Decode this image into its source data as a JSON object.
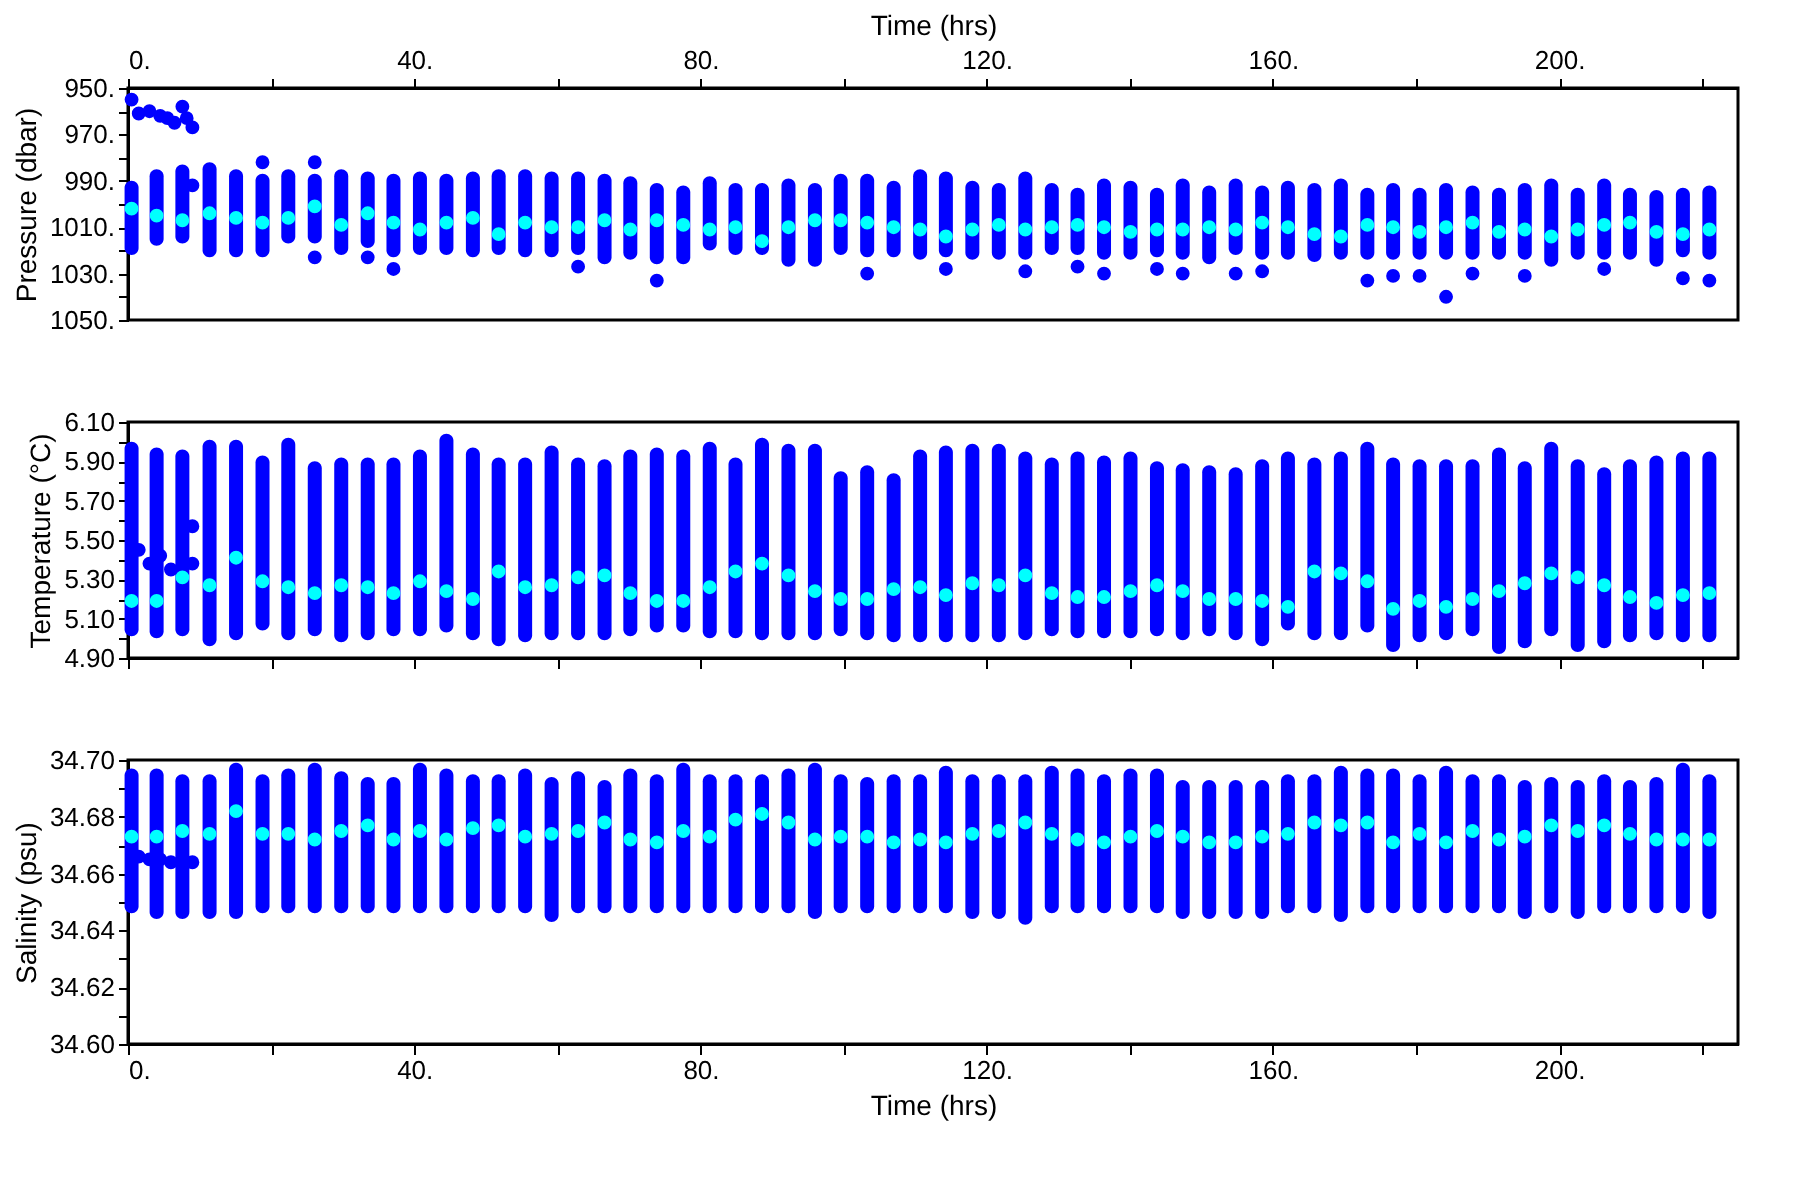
{
  "chart_data": [
    {
      "type": "scatter",
      "xlabel": "Time (hrs)",
      "ylabel": "Pressure (dbar)",
      "xlim": [
        0,
        225
      ],
      "xticks": [
        {
          "value": 0,
          "label": "0."
        },
        {
          "value": 20,
          "label": null
        },
        {
          "value": 40,
          "label": "40."
        },
        {
          "value": 60,
          "label": null
        },
        {
          "value": 80,
          "label": "80."
        },
        {
          "value": 100,
          "label": null
        },
        {
          "value": 120,
          "label": "120."
        },
        {
          "value": 140,
          "label": null
        },
        {
          "value": 160,
          "label": "160."
        },
        {
          "value": 180,
          "label": null
        },
        {
          "value": 200,
          "label": "200."
        },
        {
          "value": 220,
          "label": null
        }
      ],
      "ylim": [
        1050,
        950
      ],
      "yticks": [
        {
          "value": 950,
          "label": "950."
        },
        {
          "value": 960,
          "label": null
        },
        {
          "value": 970,
          "label": "970."
        },
        {
          "value": 980,
          "label": null
        },
        {
          "value": 990,
          "label": "990."
        },
        {
          "value": 1000,
          "label": null
        },
        {
          "value": 1010,
          "label": "1010."
        },
        {
          "value": 1020,
          "label": null
        },
        {
          "value": 1030,
          "label": "1030."
        },
        {
          "value": 1040,
          "label": null
        },
        {
          "value": 1050,
          "label": "1050."
        }
      ],
      "x": [
        0.5,
        4.0,
        7.6,
        11.4,
        15.1,
        18.8,
        22.4,
        26.1,
        29.8,
        33.5,
        37.1,
        40.8,
        44.5,
        48.2,
        51.8,
        55.5,
        59.2,
        62.9,
        66.6,
        70.2,
        73.9,
        77.6,
        81.3,
        84.9,
        88.6,
        92.3,
        96.0,
        99.6,
        103.3,
        107.0,
        110.7,
        114.3,
        118.0,
        121.7,
        125.4,
        129.1,
        132.7,
        136.4,
        140.1,
        143.8,
        147.4,
        151.1,
        154.8,
        158.5,
        162.1,
        165.8,
        169.5,
        173.2,
        176.8,
        180.5,
        184.2,
        187.9,
        191.6,
        195.2,
        198.9,
        202.6,
        206.3,
        209.9,
        213.6,
        217.3,
        221.0
      ],
      "series": [
        {
          "type": "bar",
          "color": "#0000ff",
          "base": [
            990,
            985,
            983,
            982,
            985,
            987,
            985,
            987,
            985,
            986,
            987,
            986,
            987,
            986,
            985,
            985,
            986,
            986,
            987,
            988,
            991,
            992,
            988,
            991,
            991,
            989,
            991,
            987,
            987,
            990,
            985,
            986,
            990,
            991,
            986,
            991,
            993,
            989,
            990,
            993,
            989,
            992,
            989,
            992,
            990,
            991,
            989,
            993,
            991,
            993,
            991,
            992,
            993,
            991,
            989,
            993,
            989,
            993,
            994,
            993,
            992
          ],
          "values": [
            32,
            33,
            34,
            41,
            38,
            36,
            32,
            30,
            37,
            33,
            36,
            36,
            35,
            37,
            37,
            38,
            37,
            36,
            39,
            36,
            35,
            34,
            32,
            31,
            31,
            38,
            36,
            35,
            36,
            33,
            39,
            37,
            34,
            33,
            38,
            31,
            29,
            35,
            34,
            30,
            35,
            34,
            33,
            32,
            34,
            34,
            35,
            31,
            33,
            31,
            33,
            32,
            31,
            33,
            38,
            31,
            35,
            31,
            33,
            30,
            32
          ]
        },
        {
          "color": "#0000ff",
          "x": [
            0.5,
            1.5,
            3.0,
            4.5,
            5.5,
            6.5,
            7.6,
            8.2,
            9.0,
            9.0,
            18.8,
            26.1,
            26.1,
            33.5,
            37.1,
            62.9,
            73.9,
            103.3,
            114.3,
            125.4,
            132.7,
            136.4,
            143.8,
            147.4,
            154.8,
            158.5,
            173.2,
            176.8,
            180.5,
            184.2,
            187.9,
            195.2,
            206.3,
            217.3,
            221.0
          ],
          "values": [
            955,
            961,
            960,
            962,
            963,
            965,
            958,
            963,
            967,
            992,
            982,
            982,
            1023,
            1023,
            1028,
            1027,
            1033,
            1030,
            1028,
            1029,
            1027,
            1030,
            1028,
            1030,
            1030,
            1029,
            1033,
            1031,
            1031,
            1040,
            1030,
            1031,
            1028,
            1032,
            1033
          ]
        },
        {
          "color": "#00ffff",
          "values": [
            1002,
            1005,
            1007,
            1004,
            1006,
            1008,
            1006,
            1001,
            1009,
            1004,
            1008,
            1011,
            1008,
            1006,
            1013,
            1008,
            1010,
            1010,
            1007,
            1011,
            1007,
            1009,
            1011,
            1010,
            1016,
            1010,
            1007,
            1007,
            1008,
            1010,
            1011,
            1014,
            1011,
            1009,
            1011,
            1010,
            1009,
            1010,
            1012,
            1011,
            1011,
            1010,
            1011,
            1008,
            1010,
            1013,
            1014,
            1009,
            1010,
            1012,
            1010,
            1008,
            1012,
            1011,
            1014,
            1011,
            1009,
            1008,
            1012,
            1013,
            1011
          ]
        }
      ]
    },
    {
      "type": "scatter",
      "ylabel": "Temperature (°C)",
      "tick_labels": "y",
      "xlim": [
        0,
        225
      ],
      "xticks": [
        0,
        20,
        40,
        60,
        80,
        100,
        120,
        140,
        160,
        180,
        200,
        220
      ],
      "ylim": [
        4.9,
        6.1
      ],
      "yticks": [
        {
          "value": 4.9,
          "label": "4.90"
        },
        {
          "value": 5.0,
          "label": null
        },
        {
          "value": 5.1,
          "label": "5.10"
        },
        {
          "value": 5.2,
          "label": null
        },
        {
          "value": 5.3,
          "label": "5.30"
        },
        {
          "value": 5.4,
          "label": null
        },
        {
          "value": 5.5,
          "label": "5.50"
        },
        {
          "value": 5.6,
          "label": null
        },
        {
          "value": 5.7,
          "label": "5.70"
        },
        {
          "value": 5.8,
          "label": null
        },
        {
          "value": 5.9,
          "label": "5.90"
        },
        {
          "value": 6.0,
          "label": null
        },
        {
          "value": 6.1,
          "label": "6.10"
        }
      ],
      "x": [
        0.5,
        4.0,
        7.6,
        11.4,
        15.1,
        18.8,
        22.4,
        26.1,
        29.8,
        33.5,
        37.1,
        40.8,
        44.5,
        48.2,
        51.8,
        55.5,
        59.2,
        62.9,
        66.6,
        70.2,
        73.9,
        77.6,
        81.3,
        84.9,
        88.6,
        92.3,
        96.0,
        99.6,
        103.3,
        107.0,
        110.7,
        114.3,
        118.0,
        121.7,
        125.4,
        129.1,
        132.7,
        136.4,
        140.1,
        143.8,
        147.4,
        151.1,
        154.8,
        158.5,
        162.1,
        165.8,
        169.5,
        173.2,
        176.8,
        180.5,
        184.2,
        187.9,
        191.6,
        195.2,
        198.9,
        202.6,
        206.3,
        209.9,
        213.6,
        217.3,
        221.0
      ],
      "series": [
        {
          "type": "bar",
          "color": "#0000ff",
          "base": [
            5.01,
            5.0,
            5.01,
            4.96,
            4.99,
            5.04,
            4.99,
            5.01,
            4.98,
            4.99,
            5.01,
            5.01,
            5.03,
            4.99,
            4.96,
            4.98,
            4.99,
            4.99,
            4.99,
            5.01,
            5.03,
            5.03,
            5.0,
            5.0,
            4.99,
            4.99,
            4.99,
            5.01,
            4.99,
            4.98,
            4.98,
            4.98,
            4.98,
            4.98,
            4.99,
            5.01,
            5.0,
            5.0,
            5.0,
            5.01,
            4.99,
            5.01,
            4.99,
            4.96,
            5.04,
            4.99,
            4.99,
            5.03,
            4.93,
            4.98,
            4.99,
            5.01,
            4.92,
            4.95,
            5.01,
            4.93,
            4.95,
            4.98,
            4.99,
            4.98,
            4.98
          ],
          "values": [
            0.99,
            0.97,
            0.95,
            1.05,
            1.02,
            0.89,
            1.03,
            0.89,
            0.94,
            0.93,
            0.91,
            0.95,
            1.01,
            0.98,
            0.96,
            0.94,
            0.99,
            0.93,
            0.92,
            0.95,
            0.94,
            0.93,
            1.0,
            0.92,
            1.03,
            1.0,
            1.0,
            0.84,
            0.89,
            0.86,
            0.98,
            1.0,
            1.01,
            1.01,
            0.96,
            0.91,
            0.95,
            0.93,
            0.95,
            0.89,
            0.9,
            0.87,
            0.88,
            0.95,
            0.91,
            0.93,
            0.96,
            0.97,
            0.99,
            0.93,
            0.92,
            0.9,
            1.05,
            0.95,
            0.99,
            0.98,
            0.92,
            0.93,
            0.94,
            0.97,
            0.97
          ]
        },
        {
          "color": "#0000ff",
          "x": [
            1.5,
            3.0,
            4.5,
            6.0,
            9.0,
            9.0
          ],
          "values": [
            5.45,
            5.38,
            5.42,
            5.35,
            5.57,
            5.38
          ]
        },
        {
          "color": "#00ffff",
          "values": [
            5.19,
            5.19,
            5.31,
            5.27,
            5.41,
            5.29,
            5.26,
            5.23,
            5.27,
            5.26,
            5.23,
            5.29,
            5.24,
            5.2,
            5.34,
            5.26,
            5.27,
            5.31,
            5.32,
            5.23,
            5.19,
            5.19,
            5.26,
            5.34,
            5.38,
            5.32,
            5.24,
            5.2,
            5.2,
            5.25,
            5.26,
            5.22,
            5.28,
            5.27,
            5.32,
            5.23,
            5.21,
            5.21,
            5.24,
            5.27,
            5.24,
            5.2,
            5.2,
            5.19,
            5.16,
            5.34,
            5.33,
            5.29,
            5.15,
            5.19,
            5.16,
            5.2,
            5.24,
            5.28,
            5.33,
            5.31,
            5.27,
            5.21,
            5.18,
            5.22,
            5.23
          ]
        }
      ]
    },
    {
      "type": "scatter",
      "xlabel": "Time (hrs)",
      "ylabel": "Salinity (psu)",
      "xlim": [
        0,
        225
      ],
      "xticks": [
        {
          "value": 0,
          "label": "0."
        },
        {
          "value": 20,
          "label": null
        },
        {
          "value": 40,
          "label": "40."
        },
        {
          "value": 60,
          "label": null
        },
        {
          "value": 80,
          "label": "80."
        },
        {
          "value": 100,
          "label": null
        },
        {
          "value": 120,
          "label": "120."
        },
        {
          "value": 140,
          "label": null
        },
        {
          "value": 160,
          "label": "160."
        },
        {
          "value": 180,
          "label": null
        },
        {
          "value": 200,
          "label": "200."
        },
        {
          "value": 220,
          "label": null
        }
      ],
      "ylim": [
        34.6,
        34.7
      ],
      "yticks": [
        {
          "value": 34.6,
          "label": "34.60"
        },
        {
          "value": 34.61,
          "label": null
        },
        {
          "value": 34.62,
          "label": "34.62"
        },
        {
          "value": 34.63,
          "label": null
        },
        {
          "value": 34.64,
          "label": "34.64"
        },
        {
          "value": 34.65,
          "label": null
        },
        {
          "value": 34.66,
          "label": "34.66"
        },
        {
          "value": 34.67,
          "label": null
        },
        {
          "value": 34.68,
          "label": "34.68"
        },
        {
          "value": 34.69,
          "label": null
        },
        {
          "value": 34.7,
          "label": "34.70"
        }
      ],
      "x": [
        0.5,
        4.0,
        7.6,
        11.4,
        15.1,
        18.8,
        22.4,
        26.1,
        29.8,
        33.5,
        37.1,
        40.8,
        44.5,
        48.2,
        51.8,
        55.5,
        59.2,
        62.9,
        66.6,
        70.2,
        73.9,
        77.6,
        81.3,
        84.9,
        88.6,
        92.3,
        96.0,
        99.6,
        103.3,
        107.0,
        110.7,
        114.3,
        118.0,
        121.7,
        125.4,
        129.1,
        132.7,
        136.4,
        140.1,
        143.8,
        147.4,
        151.1,
        154.8,
        158.5,
        162.1,
        165.8,
        169.5,
        173.2,
        176.8,
        180.5,
        184.2,
        187.9,
        191.6,
        195.2,
        198.9,
        202.6,
        206.3,
        209.9,
        213.6,
        217.3,
        221.0
      ],
      "series": [
        {
          "type": "bar",
          "color": "#0000ff",
          "base": [
            34.646,
            34.644,
            34.644,
            34.644,
            34.644,
            34.646,
            34.646,
            34.646,
            34.646,
            34.646,
            34.646,
            34.646,
            34.646,
            34.646,
            34.646,
            34.646,
            34.643,
            34.646,
            34.646,
            34.646,
            34.646,
            34.646,
            34.646,
            34.646,
            34.646,
            34.646,
            34.644,
            34.646,
            34.646,
            34.646,
            34.646,
            34.646,
            34.644,
            34.644,
            34.642,
            34.646,
            34.646,
            34.646,
            34.646,
            34.646,
            34.644,
            34.644,
            34.644,
            34.644,
            34.646,
            34.646,
            34.643,
            34.646,
            34.646,
            34.646,
            34.646,
            34.646,
            34.646,
            34.644,
            34.646,
            34.644,
            34.646,
            34.646,
            34.646,
            34.646,
            34.644
          ],
          "values": [
            0.051,
            0.053,
            0.051,
            0.051,
            0.055,
            0.049,
            0.051,
            0.053,
            0.05,
            0.048,
            0.048,
            0.053,
            0.051,
            0.049,
            0.049,
            0.051,
            0.051,
            0.05,
            0.047,
            0.051,
            0.049,
            0.053,
            0.049,
            0.049,
            0.049,
            0.051,
            0.055,
            0.049,
            0.048,
            0.049,
            0.049,
            0.052,
            0.051,
            0.051,
            0.053,
            0.052,
            0.051,
            0.049,
            0.051,
            0.051,
            0.049,
            0.049,
            0.049,
            0.049,
            0.049,
            0.049,
            0.055,
            0.051,
            0.051,
            0.049,
            0.052,
            0.049,
            0.049,
            0.049,
            0.048,
            0.049,
            0.049,
            0.047,
            0.048,
            0.053,
            0.051
          ]
        },
        {
          "color": "#0000ff",
          "x": [
            1.5,
            3.0,
            4.5,
            6.0,
            9.0
          ],
          "values": [
            34.666,
            34.665,
            34.665,
            34.664,
            34.664
          ]
        },
        {
          "color": "#00ffff",
          "values": [
            34.673,
            34.673,
            34.675,
            34.674,
            34.682,
            34.674,
            34.674,
            34.672,
            34.675,
            34.677,
            34.672,
            34.675,
            34.672,
            34.676,
            34.677,
            34.673,
            34.674,
            34.675,
            34.678,
            34.672,
            34.671,
            34.675,
            34.673,
            34.679,
            34.681,
            34.678,
            34.672,
            34.673,
            34.673,
            34.671,
            34.672,
            34.671,
            34.674,
            34.675,
            34.678,
            34.674,
            34.672,
            34.671,
            34.673,
            34.675,
            34.673,
            34.671,
            34.671,
            34.673,
            34.674,
            34.678,
            34.677,
            34.678,
            34.671,
            34.674,
            34.671,
            34.675,
            34.672,
            34.673,
            34.677,
            34.675,
            34.677,
            34.674,
            34.672,
            34.672,
            34.672
          ]
        }
      ]
    }
  ]
}
